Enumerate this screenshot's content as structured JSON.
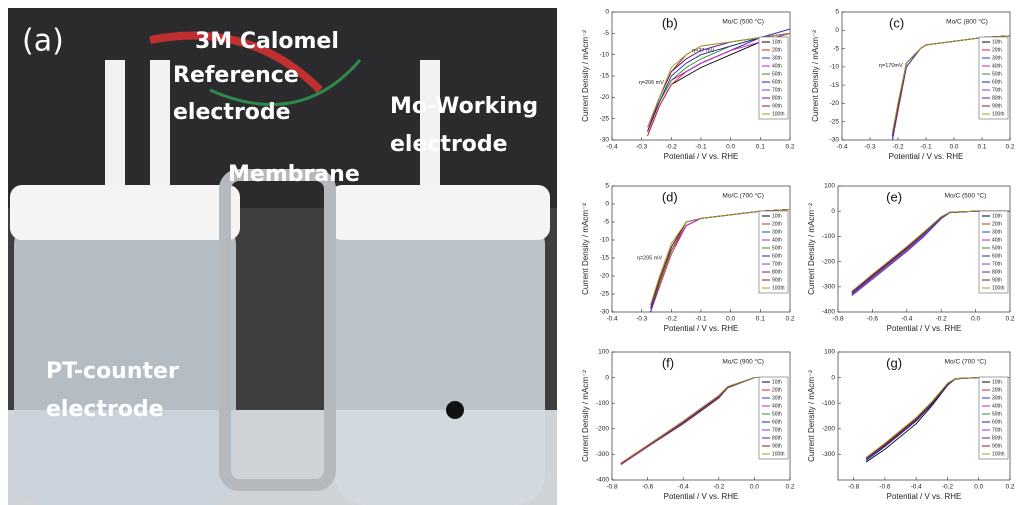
{
  "photo": {
    "panel": "(a)",
    "labels": [
      "3M Calomel",
      "Reference",
      "electrode",
      "Mo-Working",
      "electrode",
      "Membrane",
      "PT-counter",
      "electrode"
    ]
  },
  "chart_data": [
    {
      "type": "line",
      "panel": "(b)",
      "title": "Mo/C (500 °C)",
      "annotations": [
        "η=27 mV",
        "η=206 mV"
      ],
      "xlabel": "Potential / V vs. RHE",
      "ylabel": "Current Density / mAcm⁻²",
      "xlim": [
        -0.4,
        0.2
      ],
      "xticks": [
        -0.4,
        -0.3,
        -0.2,
        -0.1,
        {
          "value": 0,
          "label": "0.0"
        },
        0.1,
        0.2
      ],
      "ylim": [
        -30,
        0
      ],
      "yticks": [
        -30,
        -25,
        -20,
        -15,
        -10,
        -5,
        0
      ],
      "x": [
        -0.28,
        -0.24,
        -0.2,
        -0.15,
        -0.1,
        0,
        0.1,
        0.2
      ],
      "series": [
        {
          "name": "10th",
          "color": "#000000",
          "values": [
            -29,
            -22,
            -17,
            -15,
            -13,
            -10,
            -7,
            -5
          ]
        },
        {
          "name": "20th",
          "color": "#e0202a",
          "values": [
            -29,
            -22,
            -17,
            -14,
            -12,
            -9,
            -6,
            -4
          ]
        },
        {
          "name": "30th",
          "color": "#1f3fcf",
          "values": [
            -28,
            -21,
            -16,
            -14,
            -12,
            -9,
            -6,
            -4
          ]
        },
        {
          "name": "40th",
          "color": "#d020c0",
          "values": [
            -28,
            -21,
            -16,
            -14,
            -12,
            -9,
            -7,
            -5
          ]
        },
        {
          "name": "50th",
          "color": "#3a8a2a",
          "values": [
            -28,
            -21,
            -16,
            -13,
            -11,
            -8,
            -6,
            -5
          ]
        },
        {
          "name": "60th",
          "color": "#1a2a8a",
          "values": [
            -28,
            -21,
            -15,
            -12,
            -10,
            -8,
            -6,
            -5
          ]
        },
        {
          "name": "70th",
          "color": "#8a3ad0",
          "values": [
            -28,
            -20,
            -14,
            -11,
            -9,
            -7,
            -6,
            -5
          ]
        },
        {
          "name": "80th",
          "color": "#6a1a8a",
          "values": [
            -28,
            -20,
            -14,
            -11,
            -9,
            -7,
            -6,
            -5
          ]
        },
        {
          "name": "90th",
          "color": "#8a1a1a",
          "values": [
            -27,
            -20,
            -14,
            -10,
            -8,
            -7,
            -6,
            -5
          ]
        },
        {
          "name": "100th",
          "color": "#a0a020",
          "values": [
            -27,
            -20,
            -13,
            -10,
            -8,
            -7,
            -6,
            -5
          ]
        }
      ]
    },
    {
      "type": "line",
      "panel": "(c)",
      "title": "Mo/C (800 °C)",
      "annotations": [
        "η=170mV"
      ],
      "xlabel": "Potential / V vs. RHE",
      "ylabel": "Current Density / mAcm⁻²",
      "xlim": [
        -0.4,
        0.2
      ],
      "xticks": [
        -0.4,
        -0.3,
        -0.2,
        -0.1,
        {
          "value": 0,
          "label": "0.0"
        },
        0.1,
        0.2
      ],
      "ylim": [
        -30,
        5
      ],
      "yticks": [
        -30,
        -25,
        -20,
        -15,
        -10,
        -5,
        0,
        5
      ],
      "x": [
        -0.22,
        -0.2,
        -0.17,
        -0.12,
        -0.1,
        0,
        0.1,
        0.2
      ],
      "series": [
        {
          "name": "10th",
          "color": "#000000",
          "values": [
            -30,
            -22,
            -10,
            -5,
            -4,
            -3,
            -2,
            -1.5
          ]
        },
        {
          "name": "20th",
          "color": "#e0202a",
          "values": [
            -30,
            -22,
            -10,
            -5,
            -4,
            -3,
            -2,
            -1.5
          ]
        },
        {
          "name": "30th",
          "color": "#1f3fcf",
          "values": [
            -30,
            -21,
            -10,
            -5,
            -4,
            -3,
            -2,
            -1.5
          ]
        },
        {
          "name": "40th",
          "color": "#d020c0",
          "values": [
            -29,
            -21,
            -9,
            -5,
            -4,
            -3,
            -2,
            -1.5
          ]
        },
        {
          "name": "50th",
          "color": "#3a8a2a",
          "values": [
            -29,
            -21,
            -9,
            -5,
            -4,
            -3,
            -2,
            -1.5
          ]
        },
        {
          "name": "60th",
          "color": "#1a2a8a",
          "values": [
            -29,
            -21,
            -9,
            -5,
            -4,
            -3,
            -2,
            -1.5
          ]
        },
        {
          "name": "70th",
          "color": "#8a3ad0",
          "values": [
            -29,
            -20,
            -9,
            -5,
            -4,
            -3,
            -2,
            -1.5
          ]
        },
        {
          "name": "80th",
          "color": "#6a1a8a",
          "values": [
            -29,
            -20,
            -9,
            -5,
            -4,
            -3,
            -2,
            -1.5
          ]
        },
        {
          "name": "90th",
          "color": "#8a1a1a",
          "values": [
            -28,
            -20,
            -9,
            -5,
            -4,
            -3,
            -2,
            -1.5
          ]
        },
        {
          "name": "100th",
          "color": "#a0a020",
          "values": [
            -28,
            -20,
            -9,
            -5,
            -4,
            -3,
            -2,
            -1.5
          ]
        }
      ]
    },
    {
      "type": "line",
      "panel": "(d)",
      "title": "Mo/C (700 °C)",
      "annotations": [
        "η=205 mV"
      ],
      "xlabel": "Potential / V vs. RHE",
      "ylabel": "Current Density / mAcm⁻²",
      "xlim": [
        -0.4,
        0.2
      ],
      "xticks": [
        -0.4,
        -0.3,
        -0.2,
        -0.1,
        {
          "value": 0,
          "label": "0.0"
        },
        0.1,
        0.2
      ],
      "ylim": [
        -30,
        5
      ],
      "yticks": [
        -30,
        -25,
        -20,
        -15,
        -10,
        -5,
        0,
        5
      ],
      "x": [
        -0.27,
        -0.24,
        -0.2,
        -0.15,
        -0.1,
        0,
        0.1,
        0.2
      ],
      "series": [
        {
          "name": "10th",
          "color": "#000000",
          "values": [
            -30,
            -22,
            -13,
            -6,
            -4,
            -3,
            -2,
            -1.5
          ]
        },
        {
          "name": "20th",
          "color": "#e0202a",
          "values": [
            -30,
            -23,
            -14,
            -6,
            -4,
            -3,
            -2,
            -1.5
          ]
        },
        {
          "name": "30th",
          "color": "#1f3fcf",
          "values": [
            -30,
            -22,
            -13,
            -6,
            -4,
            -3,
            -2,
            -1.5
          ]
        },
        {
          "name": "40th",
          "color": "#d020c0",
          "values": [
            -29,
            -22,
            -13,
            -6,
            -4,
            -3,
            -2,
            -1.5
          ]
        },
        {
          "name": "50th",
          "color": "#3a8a2a",
          "values": [
            -29,
            -22,
            -13,
            -5,
            -4,
            -3,
            -2,
            -1.5
          ]
        },
        {
          "name": "60th",
          "color": "#1a2a8a",
          "values": [
            -29,
            -21,
            -12,
            -5,
            -4,
            -3,
            -2,
            -1.5
          ]
        },
        {
          "name": "70th",
          "color": "#8a3ad0",
          "values": [
            -29,
            -21,
            -12,
            -5,
            -4,
            -3,
            -2,
            -1.5
          ]
        },
        {
          "name": "80th",
          "color": "#6a1a8a",
          "values": [
            -29,
            -21,
            -12,
            -5,
            -4,
            -3,
            -2,
            -1.5
          ]
        },
        {
          "name": "90th",
          "color": "#8a1a1a",
          "values": [
            -28,
            -21,
            -12,
            -5,
            -4,
            -3,
            -2,
            -1.5
          ]
        },
        {
          "name": "100th",
          "color": "#a0a020",
          "values": [
            -28,
            -20,
            -11,
            -5,
            -4,
            -3,
            -2,
            -1.5
          ]
        }
      ]
    },
    {
      "type": "line",
      "panel": "(e)",
      "title": "Mo/C (500 °C)",
      "annotations": [],
      "xlabel": "Potential / V vs. RHE",
      "ylabel": "Current Density / mAcm⁻²",
      "xlim": [
        -0.8,
        0.2
      ],
      "xticks": [
        -0.8,
        -0.6,
        -0.4,
        -0.2,
        {
          "value": 0,
          "label": "0.0"
        },
        0.2
      ],
      "ylim": [
        -400,
        100
      ],
      "yticks": [
        -400,
        -300,
        -200,
        -100,
        0,
        100
      ],
      "x": [
        -0.72,
        -0.6,
        -0.4,
        -0.3,
        -0.2,
        -0.15,
        0,
        0.2
      ],
      "series": [
        {
          "name": "10th",
          "color": "#000000",
          "values": [
            -330,
            -260,
            -150,
            -90,
            -25,
            -5,
            0,
            0
          ]
        },
        {
          "name": "20th",
          "color": "#e0202a",
          "values": [
            -330,
            -265,
            -155,
            -95,
            -28,
            -5,
            0,
            0
          ]
        },
        {
          "name": "30th",
          "color": "#1f3fcf",
          "values": [
            -335,
            -270,
            -160,
            -100,
            -30,
            -6,
            0,
            0
          ]
        },
        {
          "name": "40th",
          "color": "#d020c0",
          "values": [
            -330,
            -265,
            -155,
            -95,
            -28,
            -5,
            0,
            0
          ]
        },
        {
          "name": "50th",
          "color": "#3a8a2a",
          "values": [
            -325,
            -260,
            -150,
            -90,
            -26,
            -5,
            0,
            0
          ]
        },
        {
          "name": "60th",
          "color": "#1a2a8a",
          "values": [
            -325,
            -258,
            -148,
            -88,
            -25,
            -5,
            0,
            0
          ]
        },
        {
          "name": "70th",
          "color": "#8a3ad0",
          "values": [
            -320,
            -255,
            -145,
            -85,
            -24,
            -4,
            0,
            0
          ]
        },
        {
          "name": "80th",
          "color": "#6a1a8a",
          "values": [
            -320,
            -255,
            -145,
            -85,
            -24,
            -4,
            0,
            0
          ]
        },
        {
          "name": "90th",
          "color": "#8a1a1a",
          "values": [
            -318,
            -252,
            -142,
            -83,
            -22,
            -4,
            0,
            0
          ]
        },
        {
          "name": "100th",
          "color": "#a0a020",
          "values": [
            -318,
            -250,
            -140,
            -82,
            -22,
            -4,
            0,
            0
          ]
        }
      ]
    },
    {
      "type": "line",
      "panel": "(f)",
      "title": "Mo/C (900 °C)",
      "annotations": [],
      "xlabel": "Potential / V vs. RHE",
      "ylabel": "Current Density / mAcm⁻²",
      "xlim": [
        -0.8,
        0.2
      ],
      "xticks": [
        -0.8,
        -0.6,
        -0.4,
        -0.2,
        {
          "value": 0,
          "label": "0.0"
        },
        0.2
      ],
      "ylim": [
        -400,
        100
      ],
      "yticks": [
        -400,
        -300,
        -200,
        -100,
        0,
        100
      ],
      "x": [
        -0.75,
        -0.6,
        -0.4,
        -0.3,
        -0.2,
        -0.15,
        0,
        0.1
      ],
      "series": [
        {
          "name": "10th",
          "color": "#000000",
          "values": [
            -340,
            -270,
            -180,
            -130,
            -80,
            -40,
            0,
            0
          ]
        },
        {
          "name": "20th",
          "color": "#e0202a",
          "values": [
            -340,
            -270,
            -178,
            -128,
            -78,
            -40,
            0,
            0
          ]
        },
        {
          "name": "30th",
          "color": "#1f3fcf",
          "values": [
            -338,
            -268,
            -176,
            -126,
            -76,
            -38,
            0,
            0
          ]
        },
        {
          "name": "40th",
          "color": "#d020c0",
          "values": [
            -338,
            -268,
            -176,
            -125,
            -75,
            -38,
            0,
            0
          ]
        },
        {
          "name": "50th",
          "color": "#3a8a2a",
          "values": [
            -336,
            -266,
            -175,
            -124,
            -74,
            -37,
            0,
            0
          ]
        },
        {
          "name": "60th",
          "color": "#1a2a8a",
          "values": [
            -336,
            -266,
            -174,
            -124,
            -74,
            -37,
            0,
            0
          ]
        },
        {
          "name": "70th",
          "color": "#8a3ad0",
          "values": [
            -335,
            -265,
            -172,
            -122,
            -72,
            -36,
            0,
            0
          ]
        },
        {
          "name": "80th",
          "color": "#6a1a8a",
          "values": [
            -335,
            -265,
            -172,
            -122,
            -72,
            -36,
            0,
            0
          ]
        },
        {
          "name": "90th",
          "color": "#8a1a1a",
          "values": [
            -334,
            -264,
            -170,
            -120,
            -70,
            -35,
            0,
            0
          ]
        },
        {
          "name": "100th",
          "color": "#a0a020",
          "values": [
            -334,
            -264,
            -170,
            -120,
            -70,
            -35,
            0,
            0
          ]
        }
      ]
    },
    {
      "type": "line",
      "panel": "(g)",
      "title": "Mo/C (700 °C)",
      "annotations": [],
      "xlabel": "Potential / V vs. RHE",
      "ylabel": "Current Density / mAcm⁻²",
      "xlim": [
        -0.9,
        0.2
      ],
      "xticks": [
        -0.8,
        -0.6,
        -0.4,
        -0.2,
        {
          "value": 0,
          "label": "0.0"
        },
        0.2
      ],
      "ylim": [
        -400,
        100
      ],
      "yticks": [
        -300,
        -200,
        -100,
        0,
        100
      ],
      "x": [
        -0.72,
        -0.6,
        -0.4,
        -0.3,
        -0.2,
        -0.15,
        0,
        0.2
      ],
      "series": [
        {
          "name": "10th",
          "color": "#000000",
          "values": [
            -330,
            -280,
            -180,
            -110,
            -30,
            -5,
            0,
            0
          ]
        },
        {
          "name": "20th",
          "color": "#e0202a",
          "values": [
            -320,
            -265,
            -165,
            -100,
            -25,
            -4,
            0,
            0
          ]
        },
        {
          "name": "30th",
          "color": "#1f3fcf",
          "values": [
            -325,
            -270,
            -170,
            -105,
            -28,
            -5,
            0,
            0
          ]
        },
        {
          "name": "40th",
          "color": "#d020c0",
          "values": [
            -315,
            -260,
            -160,
            -98,
            -24,
            -4,
            0,
            0
          ]
        },
        {
          "name": "50th",
          "color": "#3a8a2a",
          "values": [
            -312,
            -258,
            -158,
            -96,
            -23,
            -4,
            0,
            0
          ]
        },
        {
          "name": "60th",
          "color": "#1a2a8a",
          "values": [
            -320,
            -268,
            -168,
            -104,
            -27,
            -5,
            0,
            0
          ]
        },
        {
          "name": "70th",
          "color": "#8a3ad0",
          "values": [
            -318,
            -262,
            -162,
            -100,
            -25,
            -4,
            0,
            0
          ]
        },
        {
          "name": "80th",
          "color": "#6a1a8a",
          "values": [
            -316,
            -262,
            -162,
            -100,
            -25,
            -4,
            0,
            0
          ]
        },
        {
          "name": "90th",
          "color": "#8a1a1a",
          "values": [
            -314,
            -260,
            -160,
            -98,
            -24,
            -4,
            0,
            0
          ]
        },
        {
          "name": "100th",
          "color": "#a0a020",
          "values": [
            -312,
            -256,
            -156,
            -94,
            -22,
            -4,
            0,
            0
          ]
        }
      ]
    }
  ]
}
